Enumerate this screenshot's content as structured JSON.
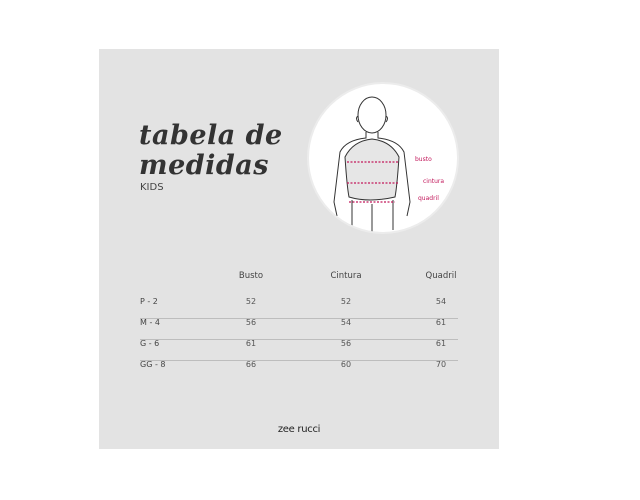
{
  "title_line1": "tabela de",
  "title_line2": "medidas",
  "subtitle": "KIDS",
  "figure": {
    "labels": [
      "busto",
      "cintura",
      "quadril"
    ],
    "accent": "#c2185b"
  },
  "table": {
    "headers": [
      "Busto",
      "Cintura",
      "Quadril"
    ],
    "rows": [
      {
        "size": "P - 2",
        "values": [
          "52",
          "52",
          "54"
        ]
      },
      {
        "size": "M - 4",
        "values": [
          "56",
          "54",
          "61"
        ]
      },
      {
        "size": "G - 6",
        "values": [
          "61",
          "56",
          "61"
        ]
      },
      {
        "size": "GG - 8",
        "values": [
          "66",
          "60",
          "70"
        ]
      }
    ]
  },
  "brand": "zee rucci"
}
